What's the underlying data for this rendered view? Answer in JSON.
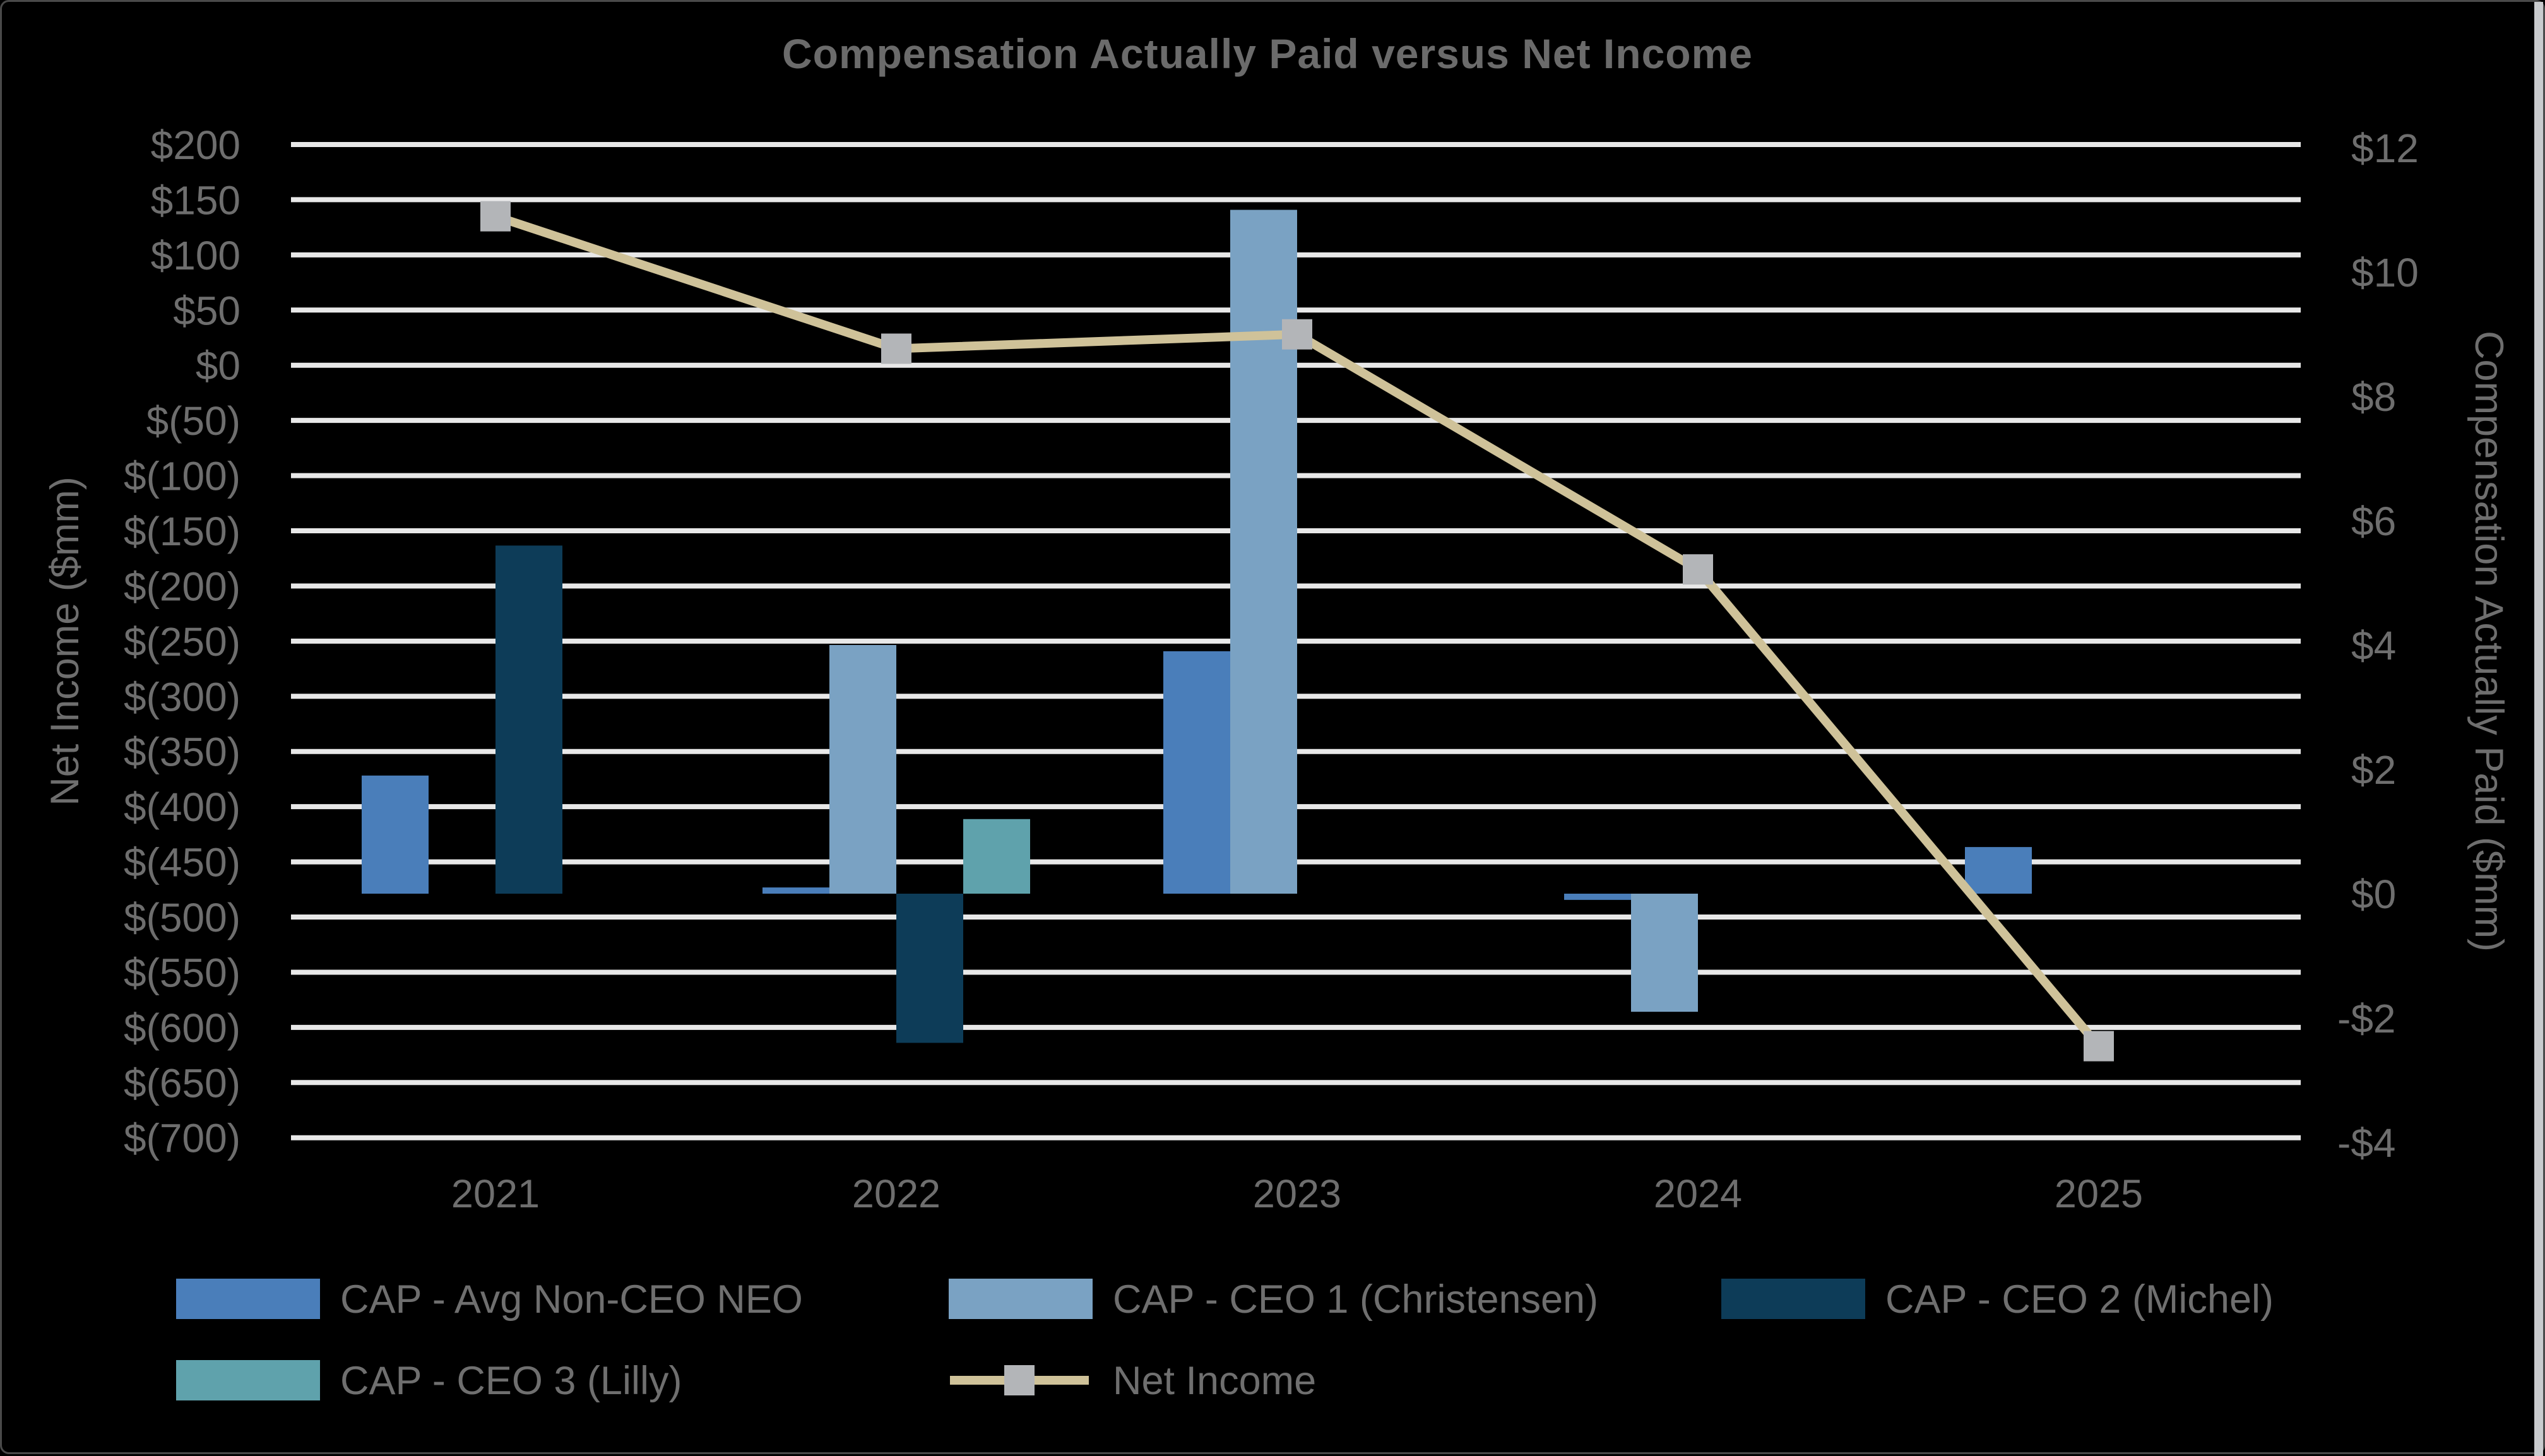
{
  "chart_data": {
    "type": "combo-bar-line",
    "title": "Compensation Actually Paid versus Net Income",
    "categories": [
      "2021",
      "2022",
      "2023",
      "2024",
      "2025"
    ],
    "bar_series": [
      {
        "name": "CAP - Avg Non-CEO NEO",
        "color": "#4a7eba",
        "axis": "right",
        "values": [
          1.9,
          0.1,
          3.9,
          -0.1,
          0.75
        ]
      },
      {
        "name": "CAP - CEO 1 (Christensen)",
        "color": "#7aa2c3",
        "axis": "right",
        "values": [
          null,
          4.0,
          11.0,
          -1.9,
          null
        ]
      },
      {
        "name": "CAP - CEO 2 (Michel)",
        "color": "#0d3c58",
        "axis": "right",
        "values": [
          5.6,
          -2.4,
          null,
          null,
          null
        ]
      },
      {
        "name": "CAP - CEO 3 (Lilly)",
        "color": "#5fa2ac",
        "axis": "right",
        "values": [
          null,
          1.2,
          null,
          null,
          null
        ]
      }
    ],
    "line_series": {
      "name": "Net Income",
      "axis": "left",
      "color": "#cfc299",
      "marker_color": "#b3b5b8",
      "marker_shape": "square",
      "values": [
        135,
        15,
        28,
        -185,
        -617
      ]
    },
    "left_axis": {
      "label": "Net Income ($mm)",
      "max": 200,
      "min": -700,
      "tick_step": 50,
      "tick_labels": [
        "$200",
        "$150",
        "$100",
        "$50",
        "$0",
        "$(50)",
        "$(100)",
        "$(150)",
        "$(200)",
        "$(250)",
        "$(300)",
        "$(350)",
        "$(400)",
        "$(450)",
        "$(500)",
        "$(550)",
        "$(600)",
        "$(650)",
        "$(700)"
      ]
    },
    "right_axis": {
      "label": "Compensation Actually Paid ($mm)",
      "max": 12,
      "min": -4,
      "tick_step": 2,
      "tick_labels": [
        "$12",
        "$10",
        "$8",
        "$6",
        "$4",
        "$2",
        "$0",
        "-$2",
        "-$4"
      ]
    },
    "grid": true,
    "legend_position": "bottom",
    "colors": {
      "background": "#000000",
      "gridline": "#e8e8e8",
      "text": "#6e6e6e",
      "title_text": "#6b6b6b"
    }
  }
}
